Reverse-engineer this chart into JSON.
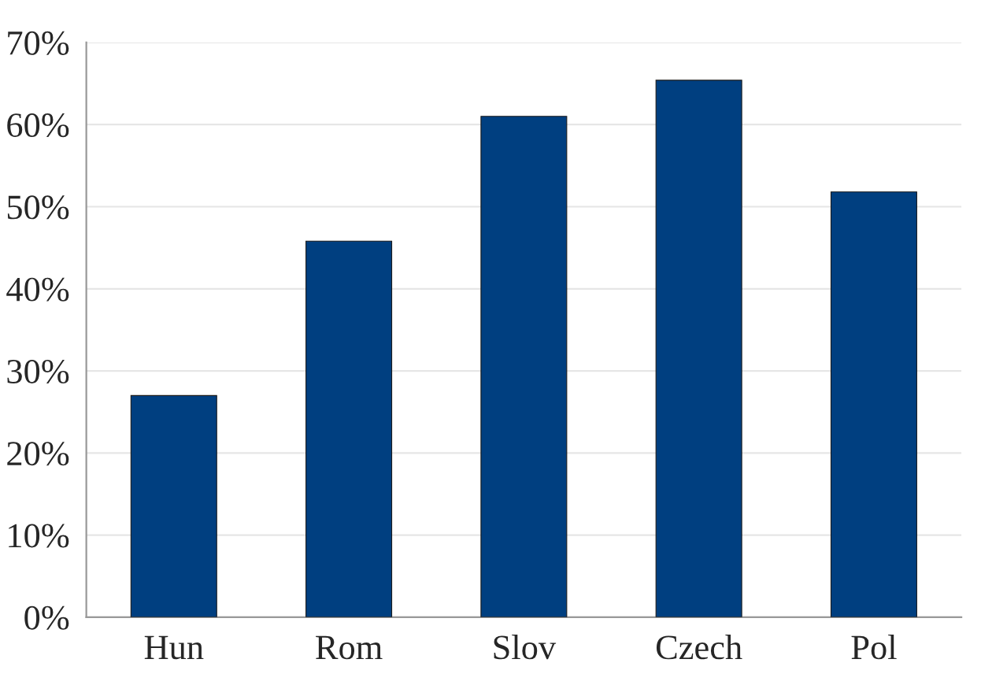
{
  "chart_data": {
    "type": "bar",
    "categories": [
      "Hun",
      "Rom",
      "Slov",
      "Czech",
      "Pol"
    ],
    "values": [
      27.0,
      45.8,
      61.0,
      65.4,
      51.8
    ],
    "color": "#003f80",
    "ylim": [
      0,
      70
    ],
    "yticks": [
      {
        "value": 0,
        "label": "0%"
      },
      {
        "value": 10,
        "label": "10%"
      },
      {
        "value": 20,
        "label": "20%"
      },
      {
        "value": 30,
        "label": "30%"
      },
      {
        "value": 40,
        "label": "40%"
      },
      {
        "value": 50,
        "label": "50%"
      },
      {
        "value": 60,
        "label": "60%"
      },
      {
        "value": 70,
        "label": "70%"
      }
    ],
    "grid": "y"
  }
}
